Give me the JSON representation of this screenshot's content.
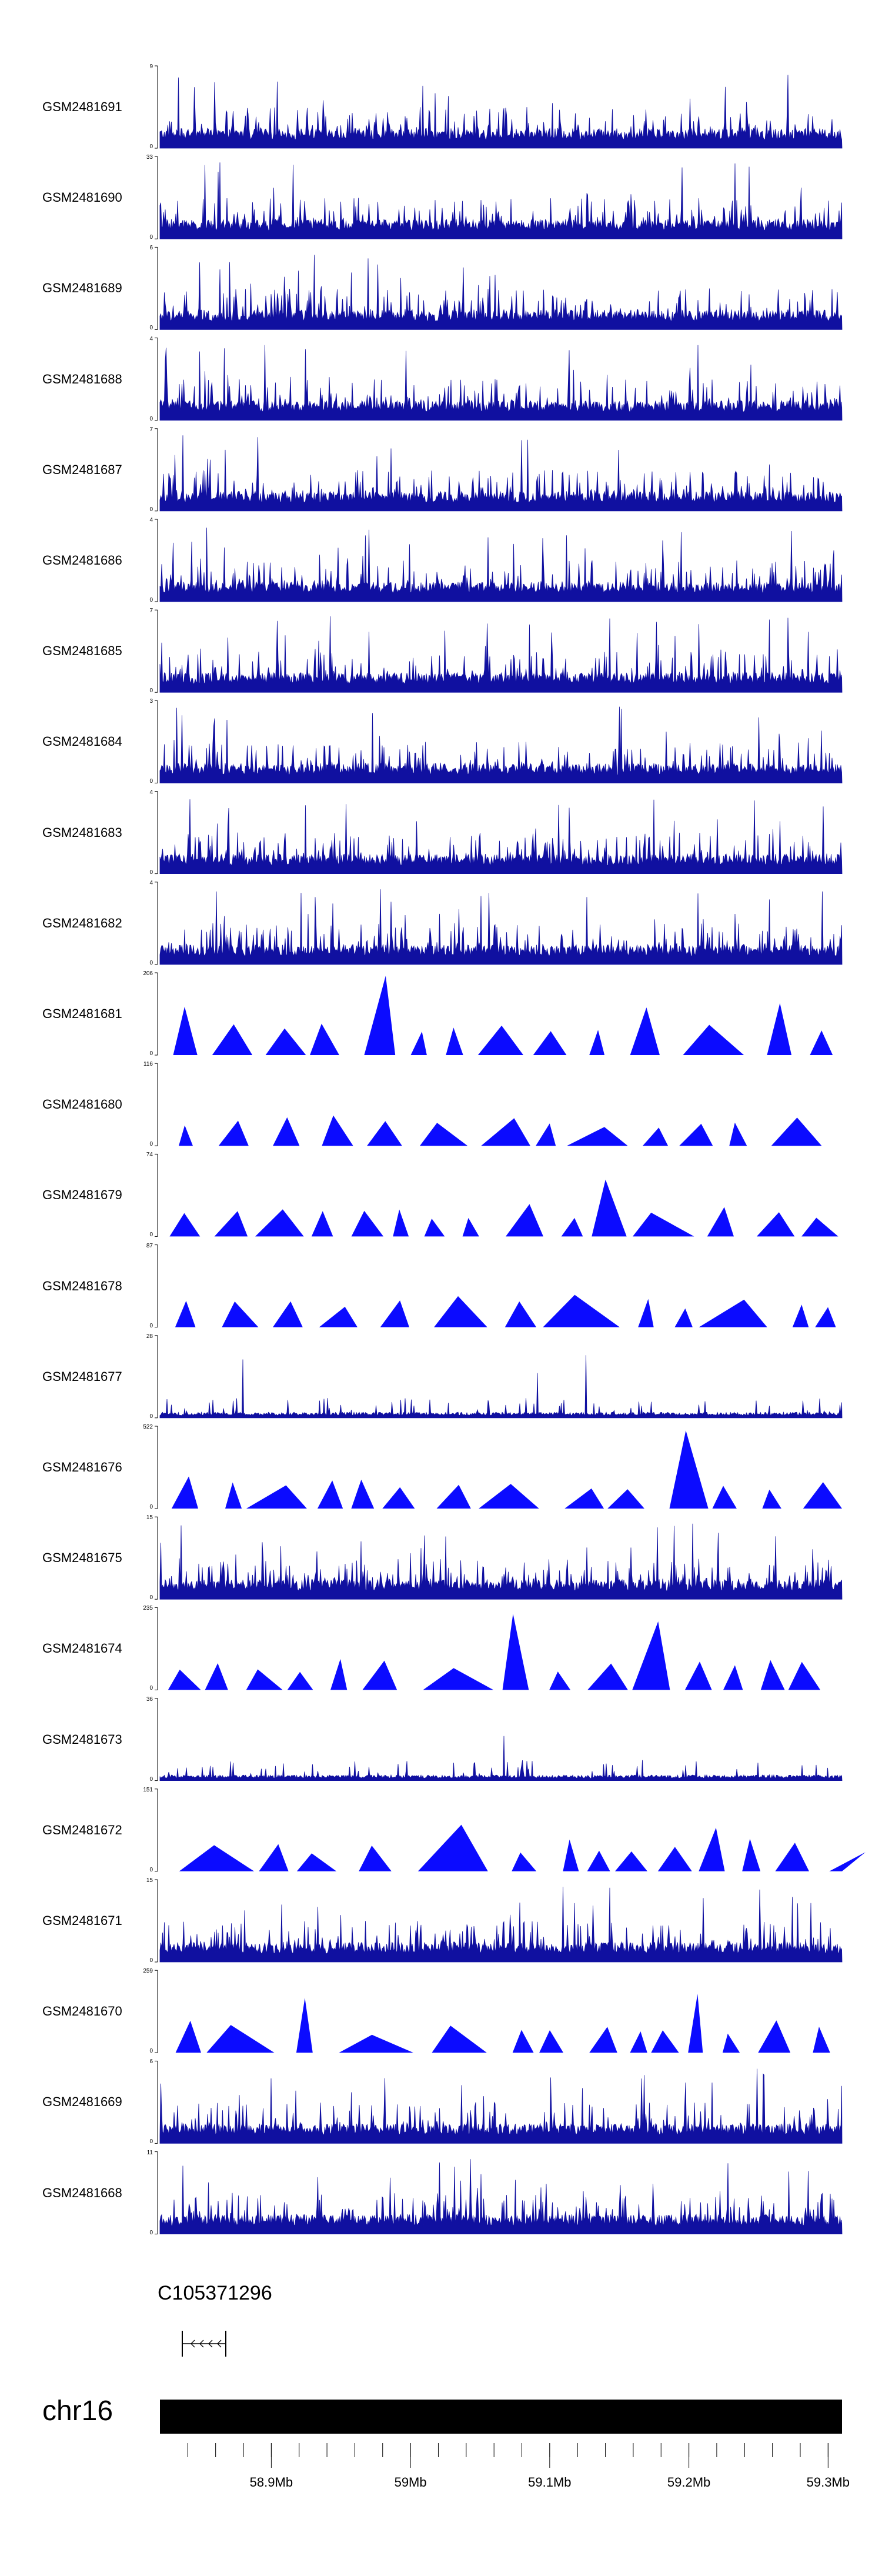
{
  "chart_data": {
    "type": "genome-browser-tracks",
    "region": {
      "chrom": "chr16",
      "start_bp": 58820000,
      "end_bp": 59310000
    },
    "colors": {
      "signal": "#1010a0",
      "peak": "#0b0bff",
      "ideogram": "#000000"
    },
    "tracks": [
      {
        "label": "GSM2481691",
        "ymax": "9",
        "ymin": "0",
        "style": "dense"
      },
      {
        "label": "GSM2481690",
        "ymax": "33",
        "ymin": "0",
        "style": "dense"
      },
      {
        "label": "GSM2481689",
        "ymax": "6",
        "ymin": "0",
        "style": "dense"
      },
      {
        "label": "GSM2481688",
        "ymax": "4",
        "ymin": "0",
        "style": "dense"
      },
      {
        "label": "GSM2481687",
        "ymax": "7",
        "ymin": "0",
        "style": "dense"
      },
      {
        "label": "GSM2481686",
        "ymax": "4",
        "ymin": "0",
        "style": "dense"
      },
      {
        "label": "GSM2481685",
        "ymax": "7",
        "ymin": "0",
        "style": "dense"
      },
      {
        "label": "GSM2481684",
        "ymax": "3",
        "ymin": "0",
        "style": "dense"
      },
      {
        "label": "GSM2481683",
        "ymax": "4",
        "ymin": "0",
        "style": "dense"
      },
      {
        "label": "GSM2481682",
        "ymax": "4",
        "ymin": "0",
        "style": "dense"
      },
      {
        "label": "GSM2481681",
        "ymax": "206",
        "ymin": "0",
        "style": "peaks"
      },
      {
        "label": "GSM2481680",
        "ymax": "116",
        "ymin": "0",
        "style": "peaks"
      },
      {
        "label": "GSM2481679",
        "ymax": "74",
        "ymin": "0",
        "style": "peaks"
      },
      {
        "label": "GSM2481678",
        "ymax": "87",
        "ymin": "0",
        "style": "peaks"
      },
      {
        "label": "GSM2481677",
        "ymax": "28",
        "ymin": "0",
        "style": "sparse"
      },
      {
        "label": "GSM2481676",
        "ymax": "522",
        "ymin": "0",
        "style": "peaks"
      },
      {
        "label": "GSM2481675",
        "ymax": "15",
        "ymin": "0",
        "style": "dense"
      },
      {
        "label": "GSM2481674",
        "ymax": "235",
        "ymin": "0",
        "style": "peaks"
      },
      {
        "label": "GSM2481673",
        "ymax": "36",
        "ymin": "0",
        "style": "sparse"
      },
      {
        "label": "GSM2481672",
        "ymax": "151",
        "ymin": "0",
        "style": "peaks"
      },
      {
        "label": "GSM2481671",
        "ymax": "15",
        "ymin": "0",
        "style": "dense"
      },
      {
        "label": "GSM2481670",
        "ymax": "259",
        "ymin": "0",
        "style": "peaks"
      },
      {
        "label": "GSM2481669",
        "ymax": "6",
        "ymin": "0",
        "style": "dense"
      },
      {
        "label": "GSM2481668",
        "ymax": "11",
        "ymin": "0",
        "style": "dense"
      }
    ],
    "gene": {
      "label": "C105371296",
      "strand": "-"
    },
    "chromosome": {
      "label": "chr16"
    },
    "x_ticks": [
      {
        "label": "58.9Mb",
        "bp": 58900000
      },
      {
        "label": "59Mb",
        "bp": 59000000
      },
      {
        "label": "59.1Mb",
        "bp": 59100000
      },
      {
        "label": "59.2Mb",
        "bp": 59200000
      },
      {
        "label": "59.3Mb",
        "bp": 59300000
      }
    ],
    "minor_tick_step_bp": 20000
  }
}
